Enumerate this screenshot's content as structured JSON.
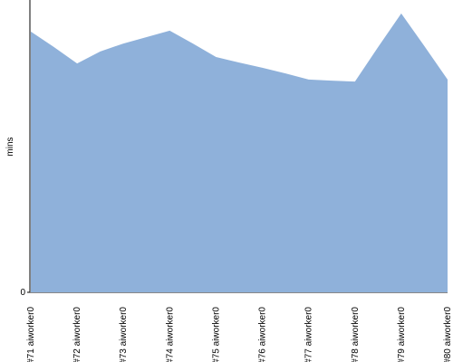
{
  "chart_data": {
    "type": "area",
    "y_label": "mins",
    "categories": [
      "#71 aiworker0",
      null,
      "#72 aiworker0",
      null,
      "#73 aiworker0",
      null,
      "#74 aiworker0",
      null,
      "#75 aiworker0",
      null,
      "#76 aiworker0",
      null,
      "#77 aiworker0",
      null,
      "#78 aiworker0",
      null,
      "#79 aiworker0",
      null,
      "#80 aiworker0"
    ],
    "values": [
      89.2,
      83.9,
      78.3,
      82.4,
      85.1,
      87.3,
      89.5,
      85.1,
      80.5,
      78.6,
      76.8,
      74.9,
      72.8,
      72.4,
      72.1,
      83.9,
      95.4,
      84.2,
      72.8
    ],
    "color": "#8fb1da",
    "ylim": [
      0,
      100
    ],
    "yticks": [
      0
    ]
  }
}
